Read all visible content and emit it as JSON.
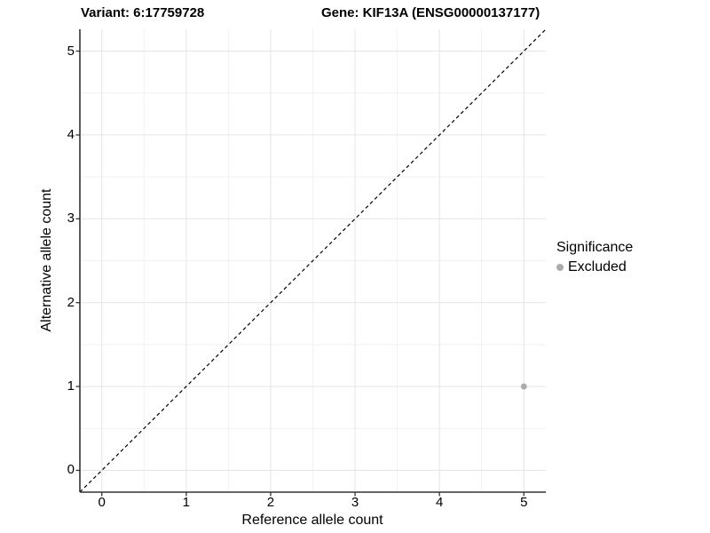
{
  "chart_data": {
    "type": "scatter",
    "title_left": "Variant: 6:17759728",
    "title_right": "Gene: KIF13A (ENSG00000137177)",
    "xlabel": "Reference allele count",
    "ylabel": "Alternative allele count",
    "xticks": [
      0,
      1,
      2,
      3,
      4,
      5
    ],
    "yticks": [
      0,
      1,
      2,
      3,
      4,
      5
    ],
    "xlim": [
      -0.26,
      5.26
    ],
    "ylim": [
      -0.26,
      5.26
    ],
    "minor_gridlines_x": [
      0.5,
      1.5,
      2.5,
      3.5,
      4.5
    ],
    "minor_gridlines_y": [
      0.5,
      1.5,
      2.5,
      3.5,
      4.5
    ],
    "grid": true,
    "identity_line": {
      "slope": 1,
      "intercept": 0,
      "style": "dashed",
      "color": "#000000"
    },
    "series": [
      {
        "name": "Excluded",
        "color": "#ababab",
        "points": [
          {
            "x": 5,
            "y": 1
          }
        ]
      }
    ],
    "legend": {
      "title": "Significance",
      "position": "right",
      "items": [
        {
          "label": "Excluded",
          "color": "#ababab"
        }
      ]
    },
    "colors": {
      "background": "#ffffff",
      "grid_major": "#e5e5e5",
      "grid_minor": "#f1f1f1",
      "axis_line": "#333333",
      "text": "#000000"
    }
  }
}
